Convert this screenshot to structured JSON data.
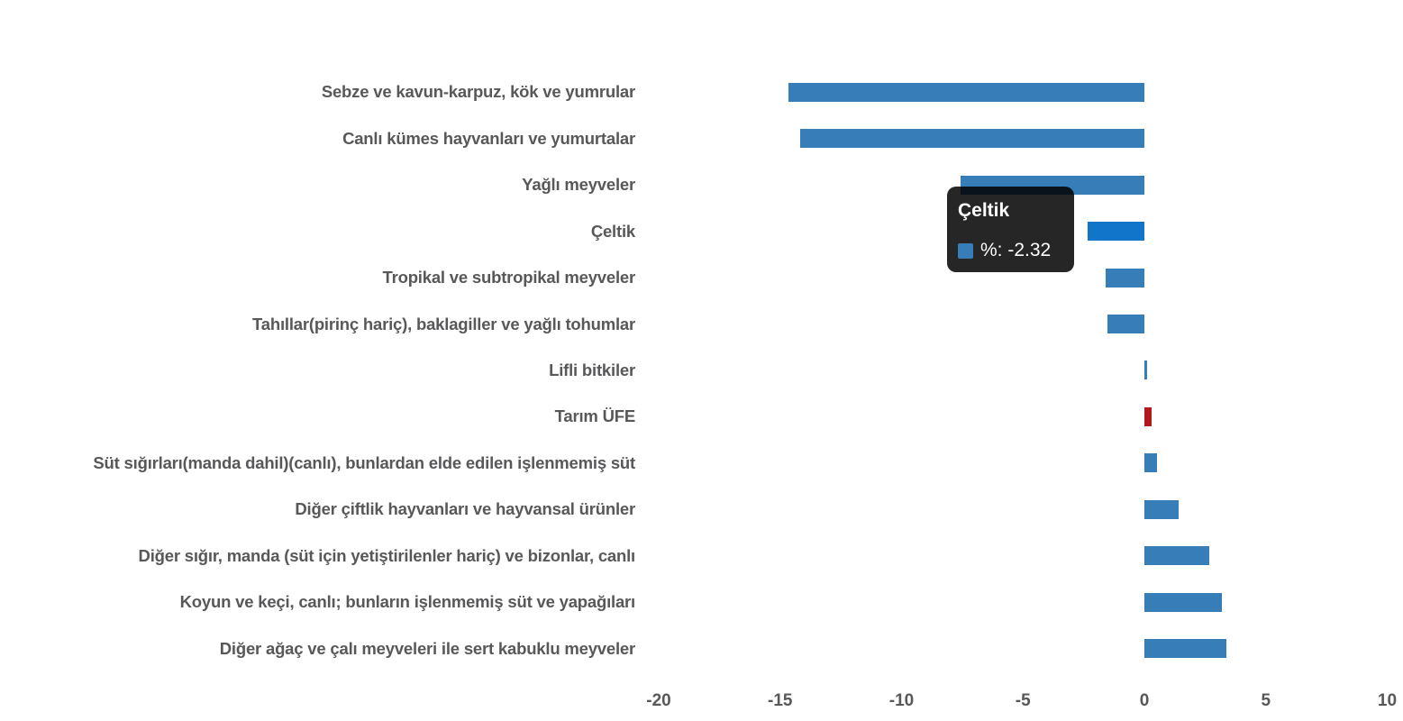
{
  "chart_data": {
    "type": "bar",
    "orientation": "horizontal",
    "title": "",
    "xlabel": "",
    "ylabel": "",
    "categories": [
      "Sebze ve kavun-karpuz, kök ve yumrular",
      "Canlı kümes hayvanları ve yumurtalar",
      "Yağlı meyveler",
      "Çeltik",
      "Tropikal ve subtropikal meyveler",
      "Tahıllar(pirinç hariç), baklagiller ve yağlı tohumlar",
      "Lifli bitkiler",
      "Tarım ÜFE",
      "Süt sığırları(manda dahil)(canlı), bunlardan elde edilen işlenmemiş süt",
      "Diğer çiftlik hayvanları ve hayvansal ürünler",
      "Diğer sığır, manda (süt için yetiştirilenler hariç) ve bizonlar, canlı",
      "Koyun ve keçi, canlı; bunların işlenmemiş süt ve yapağıları",
      "Diğer ağaç ve çalı meyveleri ile sert kabuklu meyveler"
    ],
    "values": [
      -14.65,
      -14.17,
      -7.57,
      -2.32,
      -1.59,
      -1.52,
      0.12,
      0.3,
      0.52,
      1.41,
      2.67,
      3.19,
      3.37
    ],
    "bar_colors": [
      "#377EB8",
      "#377EB8",
      "#377EB8",
      "#1175C9",
      "#377EB8",
      "#377EB8",
      "#377EB8",
      "#B11A21",
      "#377EB8",
      "#377EB8",
      "#377EB8",
      "#377EB8",
      "#377EB8"
    ],
    "series_name": "%",
    "xlim": [
      -20,
      10
    ],
    "x_ticks": [
      "-20",
      "-15",
      "-10",
      "-5",
      "0",
      "5",
      "10"
    ],
    "grid": false,
    "legend": false,
    "highlighted_category": "Çeltik",
    "accent_category": "Tarım ÜFE"
  },
  "tooltip": {
    "title": "Çeltik",
    "value_label": "%: -2.32",
    "swatch_color": "#377EB8"
  },
  "colors": {
    "background": "#FFFFFF",
    "bar": "#377EB8",
    "bar_hover": "#1175C9",
    "bar_accent": "#B11A21",
    "category_label": "#58585A",
    "axis_label": "#58585A",
    "tooltip_bg": "rgba(0,0,0,0.85)",
    "tooltip_text": "#FFFFFF"
  }
}
